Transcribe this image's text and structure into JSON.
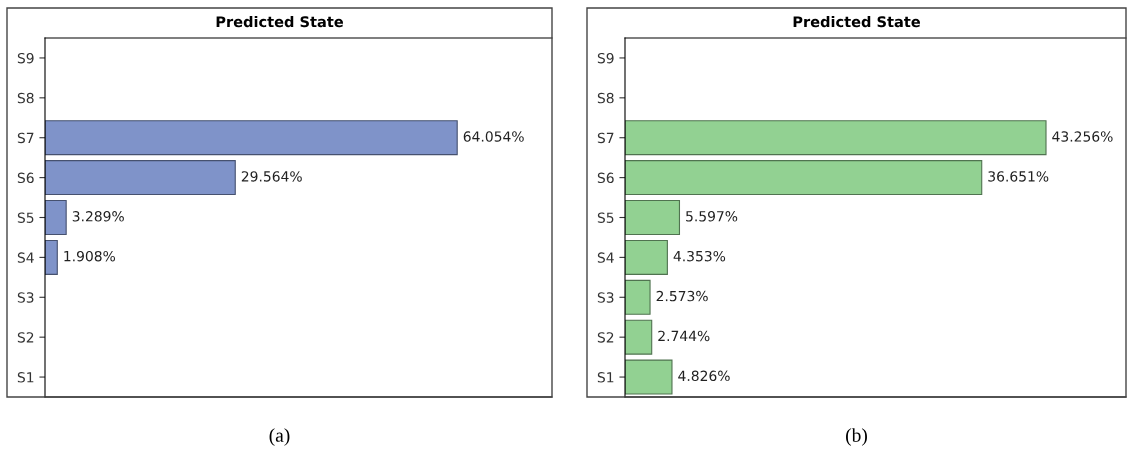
{
  "chart_data": [
    {
      "type": "bar",
      "orientation": "horizontal",
      "title": "Predicted State",
      "categories": [
        "S9",
        "S8",
        "S7",
        "S6",
        "S5",
        "S4",
        "S3",
        "S2",
        "S1"
      ],
      "values": [
        null,
        null,
        64.054,
        29.564,
        3.289,
        1.908,
        null,
        null,
        null
      ],
      "color": "#7f93c9",
      "data_labels": true,
      "value_labels": [
        null,
        null,
        "64.054%",
        "29.564%",
        "3.289%",
        "1.908%",
        null,
        null,
        null
      ],
      "tick_labels": "y",
      "grid": false,
      "legend": false,
      "annotations": [
        "(a)"
      ]
    },
    {
      "type": "bar",
      "orientation": "horizontal",
      "title": "Predicted State",
      "categories": [
        "S9",
        "S8",
        "S7",
        "S6",
        "S5",
        "S4",
        "S3",
        "S2",
        "S1"
      ],
      "values": [
        null,
        null,
        43.256,
        36.651,
        5.597,
        4.353,
        2.573,
        2.744,
        4.826
      ],
      "color": "#92d192",
      "data_labels": true,
      "value_labels": [
        null,
        null,
        "43.256%",
        "36.651%",
        "5.597%",
        "4.353%",
        "2.573%",
        "2.744%",
        "4.826%"
      ],
      "tick_labels": "y",
      "grid": false,
      "legend": false,
      "annotations": [
        "(b)"
      ]
    }
  ]
}
